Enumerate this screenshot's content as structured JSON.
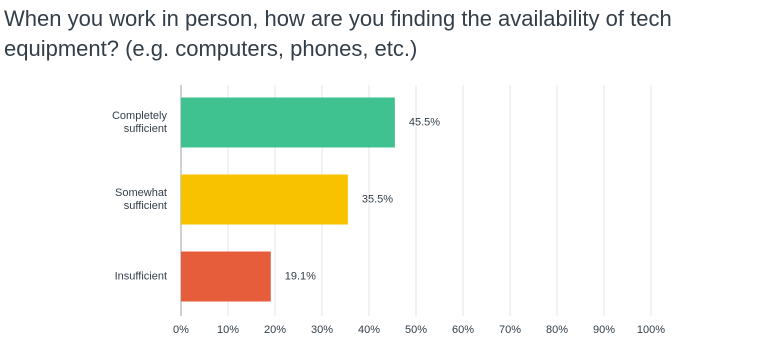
{
  "chart_data": {
    "type": "hbar",
    "title": "When you work in person, how are you finding the availability of tech equipment? (e.g. computers, phones, etc.)",
    "categories": [
      "Completely sufficient",
      "Somewhat sufficient",
      "Insufficient"
    ],
    "values": [
      45.5,
      35.5,
      19.1
    ],
    "value_labels": [
      "45.5%",
      "35.5%",
      "19.1%"
    ],
    "colors": [
      "#3fc28f",
      "#f8c201",
      "#e55d3b"
    ],
    "xlim": [
      0,
      100
    ],
    "xticks": [
      {
        "value": 0,
        "label": "0%"
      },
      {
        "value": 10,
        "label": "10%"
      },
      {
        "value": 20,
        "label": "20%"
      },
      {
        "value": 30,
        "label": "30%"
      },
      {
        "value": 40,
        "label": "40%"
      },
      {
        "value": 50,
        "label": "50%"
      },
      {
        "value": 60,
        "label": "60%"
      },
      {
        "value": 70,
        "label": "70%"
      },
      {
        "value": 80,
        "label": "80%"
      },
      {
        "value": 90,
        "label": "90%"
      },
      {
        "value": 100,
        "label": "100%"
      }
    ],
    "grid": true
  }
}
